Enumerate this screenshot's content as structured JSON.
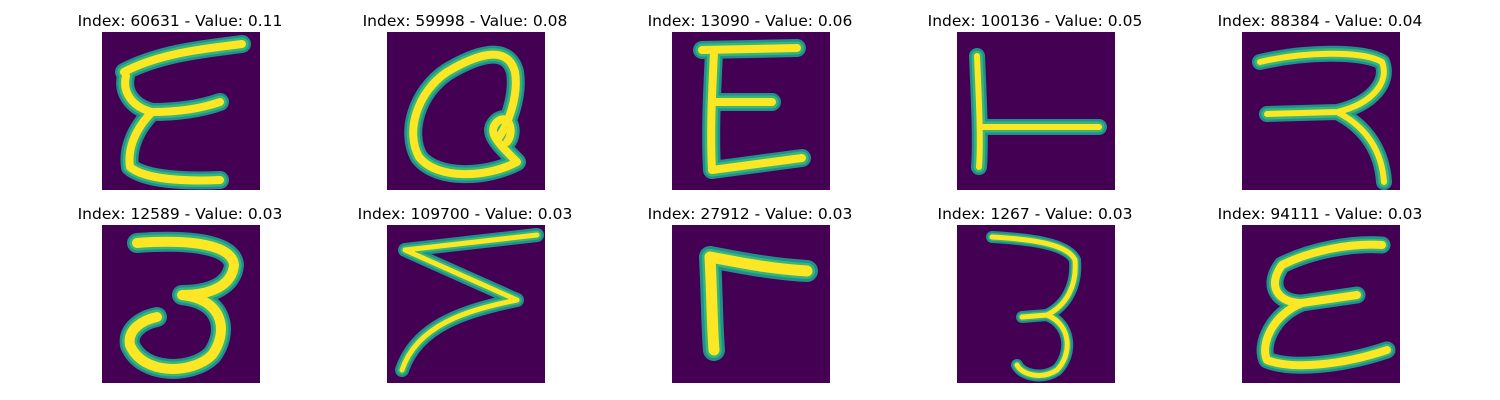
{
  "colors": {
    "background": "#440154",
    "stroke_core": "#fde725",
    "stroke_edge": "#35b779",
    "stroke_fringe": "#21908d"
  },
  "tiles": [
    {
      "title": "Index: 60631 - Value: 0.11",
      "glyph": "epsilon-like-script"
    },
    {
      "title": "Index: 59998 - Value: 0.08",
      "glyph": "Q-like-loop"
    },
    {
      "title": "Index: 13090 - Value: 0.06",
      "glyph": "E"
    },
    {
      "title": "Index: 100136 - Value: 0.05",
      "glyph": "L"
    },
    {
      "title": "Index: 88384 - Value: 0.04",
      "glyph": "R-like-hook"
    },
    {
      "title": "Index: 12589 - Value: 0.03",
      "glyph": "3"
    },
    {
      "title": "Index: 109700 - Value: 0.03",
      "glyph": "Z-like-zigzag"
    },
    {
      "title": "Index: 27912 - Value: 0.03",
      "glyph": "L-rotated"
    },
    {
      "title": "Index: 1267 - Value: 0.03",
      "glyph": "3-thin"
    },
    {
      "title": "Index: 94111 - Value: 0.03",
      "glyph": "E-like-script"
    }
  ]
}
